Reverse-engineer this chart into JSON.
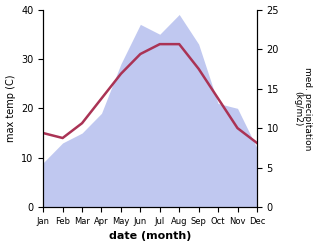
{
  "months": [
    "Jan",
    "Feb",
    "Mar",
    "Apr",
    "May",
    "Jun",
    "Jul",
    "Aug",
    "Sep",
    "Oct",
    "Nov",
    "Dec"
  ],
  "max_temp": [
    15,
    14,
    17,
    22,
    27,
    31,
    33,
    33,
    28,
    22,
    16,
    13
  ],
  "precipitation": [
    9,
    13,
    15,
    19,
    29,
    37,
    35,
    39,
    33,
    21,
    20,
    12
  ],
  "temp_color": "#aa3355",
  "precip_fill_color": "#c0c8f0",
  "temp_ylim": [
    0,
    40
  ],
  "precip_ylim": [
    0,
    25
  ],
  "right_yticks": [
    0,
    5,
    10,
    15,
    20,
    25
  ],
  "left_yticks": [
    0,
    10,
    20,
    30,
    40
  ],
  "xlabel": "date (month)",
  "ylabel_left": "max temp (C)",
  "ylabel_right": "med. precipitation\n(kg/m2)",
  "bg_color": "#ffffff"
}
